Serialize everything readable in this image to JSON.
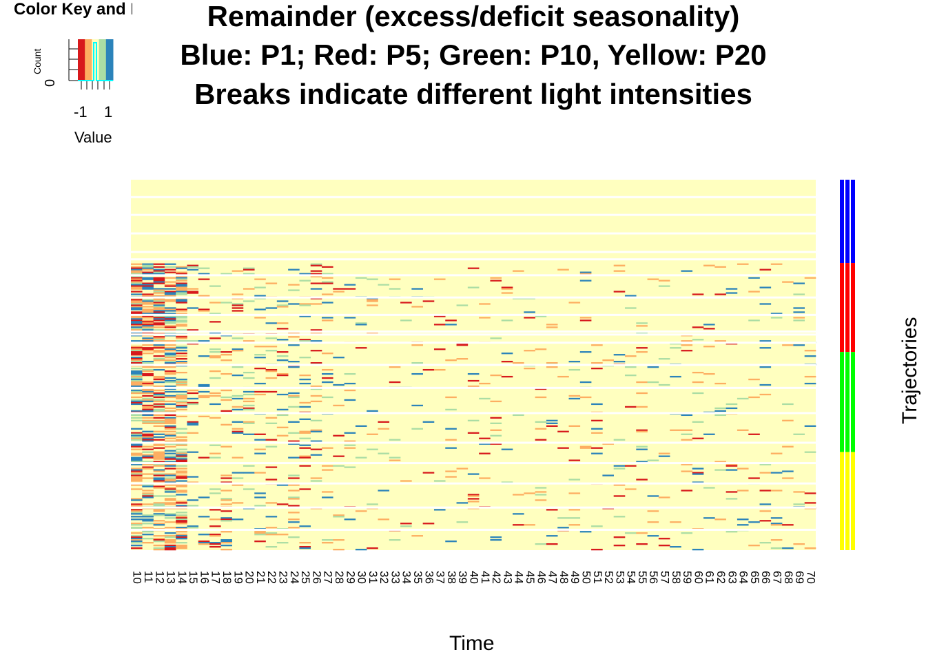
{
  "chart_data": {
    "type": "heatmap",
    "title_lines": [
      "Remainder (excess/deficit seasonality)",
      "Blue: P1; Red: P5; Green: P10, Yellow: P20",
      "Breaks indicate different light intensities"
    ],
    "xlabel": "Time",
    "ylabel": "Trajectories",
    "x_tick_labels": [
      "10",
      "11",
      "12",
      "13",
      "14",
      "15",
      "16",
      "17",
      "18",
      "19",
      "20",
      "21",
      "22",
      "23",
      "24",
      "25",
      "26",
      "27",
      "28",
      "29",
      "30",
      "31",
      "32",
      "33",
      "34",
      "35",
      "36",
      "37",
      "38",
      "39",
      "40",
      "41",
      "42",
      "43",
      "44",
      "45",
      "46",
      "47",
      "48",
      "49",
      "50",
      "51",
      "52",
      "53",
      "54",
      "55",
      "56",
      "57",
      "58",
      "59",
      "60",
      "61",
      "62",
      "63",
      "64",
      "65",
      "66",
      "67",
      "68",
      "69",
      "70"
    ],
    "color_key": {
      "title": "Color Key and Histogram",
      "ylabel": "Count",
      "y_tick_label": "0",
      "xlabel": "Value",
      "x_tick_labels": [
        "-1",
        "1"
      ],
      "colors": [
        "#d7191c",
        "#fdae61",
        "#ffffbf",
        "#abdda4",
        "#2b83ba"
      ]
    },
    "value_range": [
      -1,
      1
    ],
    "background_value_color": "#ffffbf",
    "row_groups": [
      {
        "name": "P1",
        "color": "#0000ff",
        "rows_fraction": [
          0.0,
          0.225
        ]
      },
      {
        "name": "P5",
        "color": "#ff0000",
        "rows_fraction": [
          0.225,
          0.465
        ]
      },
      {
        "name": "P10",
        "color": "#00ff00",
        "rows_fraction": [
          0.465,
          0.735
        ]
      },
      {
        "name": "P20",
        "color": "#ffff00",
        "rows_fraction": [
          0.735,
          1.0
        ]
      }
    ],
    "row_breaks_fraction": [
      0.047,
      0.095,
      0.145,
      0.195,
      0.215,
      0.258,
      0.318,
      0.365,
      0.41,
      0.418,
      0.44,
      0.5,
      0.562,
      0.63,
      0.71,
      0.765,
      0.82,
      0.885,
      0.945
    ],
    "legend": "none"
  }
}
